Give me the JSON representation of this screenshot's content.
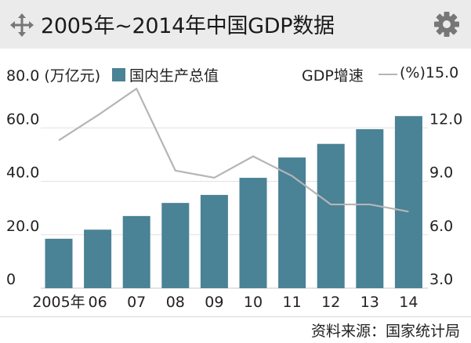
{
  "header": {
    "title": "2005年~2014年中国GDP数据",
    "move_icon": "move-arrows-icon",
    "settings_icon": "gear-icon"
  },
  "chart_data": {
    "type": "bar",
    "categories": [
      "2005年",
      "06",
      "07",
      "08",
      "09",
      "10",
      "11",
      "12",
      "13",
      "14"
    ],
    "series": [
      {
        "name": "国内生产总值",
        "type": "bar",
        "axis": "left",
        "color": "#4a8296",
        "values": [
          18.5,
          21.9,
          27.0,
          31.9,
          34.9,
          41.3,
          48.9,
          54.0,
          59.5,
          64.4
        ]
      },
      {
        "name": "GDP增速",
        "type": "line",
        "axis": "right",
        "color": "#b5b5b5",
        "values": [
          11.3,
          12.7,
          14.2,
          9.6,
          9.2,
          10.4,
          9.3,
          7.7,
          7.7,
          7.3
        ]
      }
    ],
    "left_axis": {
      "label": "(万亿元)",
      "min": 0,
      "max": 80,
      "ticks": [
        "0",
        "20.0",
        "40.0",
        "60.0",
        "80.0"
      ]
    },
    "right_axis": {
      "label": "(%)",
      "min": 3,
      "max": 15,
      "ticks": [
        "3.0",
        "6.0",
        "9.0",
        "12.0",
        "15.0"
      ]
    },
    "grid": true
  },
  "source": "资料来源：国家统计局"
}
